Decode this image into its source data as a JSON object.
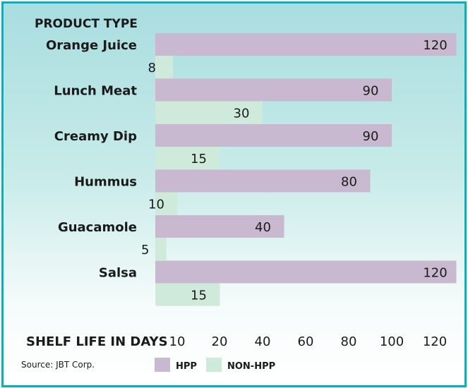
{
  "chart_data": {
    "type": "bar",
    "orientation": "horizontal",
    "header": "PRODUCT TYPE",
    "xlabel": "SHELF LIFE IN DAYS",
    "categories": [
      "Orange Juice",
      "Lunch Meat",
      "Creamy Dip",
      "Hummus",
      "Guacamole",
      "Salsa"
    ],
    "series": [
      {
        "name": "HPP",
        "color": "#c9b9d0",
        "values": [
          120,
          90,
          90,
          80,
          40,
          120
        ]
      },
      {
        "name": "NON-HPP",
        "color": "#cfe9db",
        "values": [
          8,
          30,
          15,
          10,
          5,
          15
        ]
      }
    ],
    "x_ticks": [
      "10",
      "20",
      "40",
      "60",
      "80",
      "100",
      "120"
    ],
    "source": "Source: JBT Corp.",
    "legend_position": "bottom"
  }
}
